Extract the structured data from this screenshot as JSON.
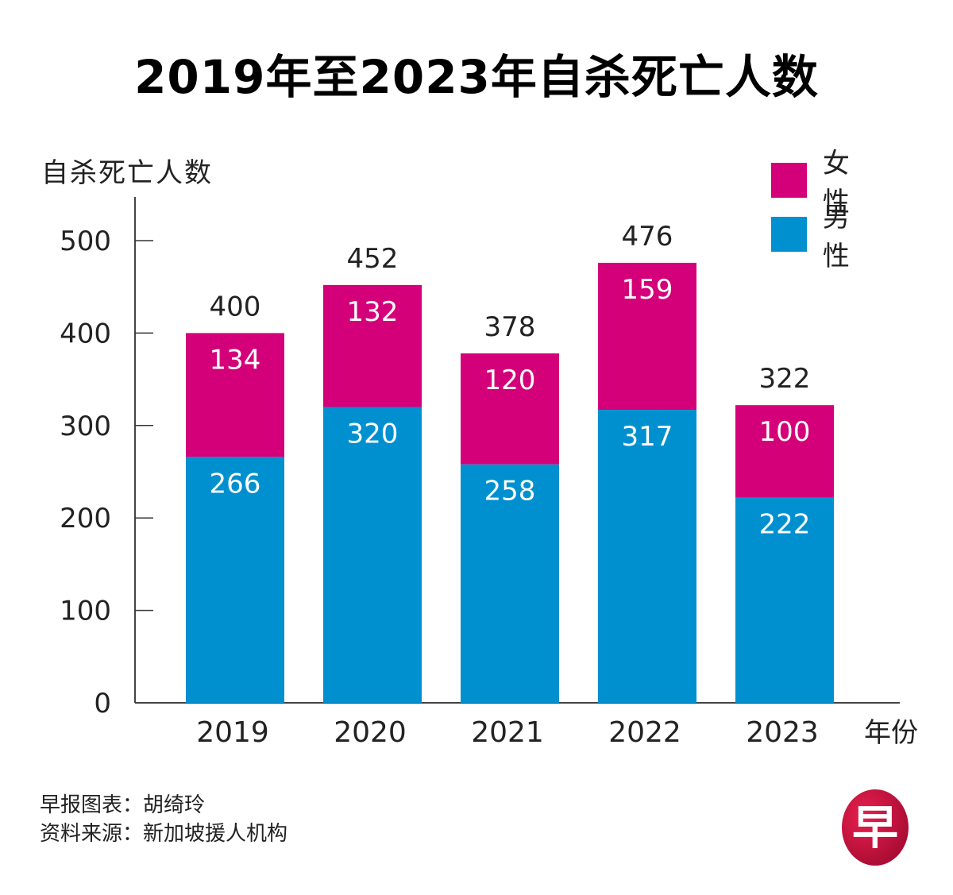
{
  "title": "2019年至2023年自杀死亡人数",
  "legend": [
    {
      "label": "女性",
      "color": "#d4007a"
    },
    {
      "label": "男性",
      "color": "#0090d0"
    }
  ],
  "footer": {
    "credit": "早报图表：胡绮玲",
    "source": "资料来源：新加坡援人机构"
  },
  "logo": {
    "glyph": "早",
    "color": "#c8103e"
  },
  "chart_data": {
    "type": "bar",
    "stacked": true,
    "title": "2019年至2023年自杀死亡人数",
    "xlabel": "年份",
    "ylabel": "自杀死亡人数",
    "categories": [
      "2019",
      "2020",
      "2021",
      "2022",
      "2023"
    ],
    "series": [
      {
        "name": "男性",
        "color": "#0090d0",
        "values": [
          266,
          320,
          258,
          317,
          222
        ]
      },
      {
        "name": "女性",
        "color": "#d4007a",
        "values": [
          134,
          132,
          120,
          159,
          100
        ]
      }
    ],
    "totals": [
      400,
      452,
      378,
      476,
      322
    ],
    "yticks": [
      0,
      100,
      200,
      300,
      400,
      500
    ],
    "ylim": [
      0,
      550
    ],
    "grid": false,
    "legend_position": "top-right"
  }
}
